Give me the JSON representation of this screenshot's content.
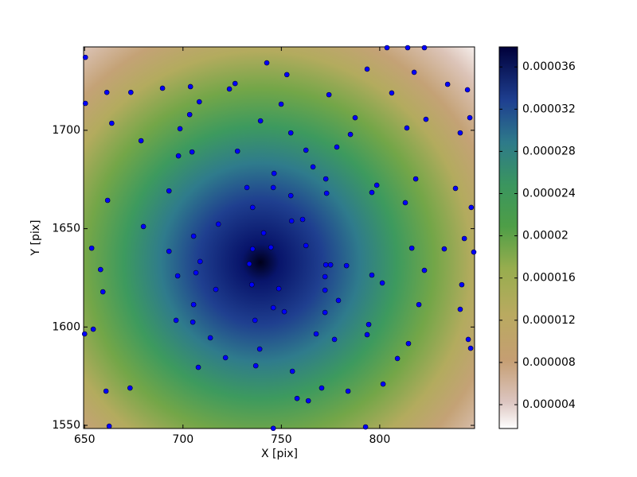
{
  "chart_data": {
    "type": "scatter",
    "x_label": "X [pix]",
    "y_label": "Y [pix]",
    "xlim": [
      649.5,
      848.2
    ],
    "ylim": [
      1548.4,
      1742.4
    ],
    "xticks": [
      650,
      700,
      750,
      800
    ],
    "yticks": [
      1550,
      1600,
      1650,
      1700
    ],
    "color": "#0000ff",
    "x": [
      650.4,
      661.3,
      673.5,
      650.4,
      663.8,
      689.6,
      703.8,
      726.5,
      723.6,
      708.3,
      703.4,
      698.5,
      704.6,
      678.7,
      697.7,
      727.7,
      739.4,
      742.6,
      752.8,
      749.9,
      754.8,
      762.5,
      766.1,
      772.6,
      773.0,
      778.2,
      774.2,
      787.5,
      785.1,
      793.6,
      803.7,
      814.2,
      822.7,
      806.1,
      817.5,
      813.8,
      823.5,
      818.3,
      834.5,
      844.6,
      840.9,
      845.8,
      838.5,
      846.5,
      843.0,
      847.8,
      832.8,
      822.7,
      816.3,
      813.0,
      798.5,
      796.0,
      746.3,
      732.5,
      735.4,
      692.9,
      718.0,
      705.4,
      679.9,
      661.7,
      653.6,
      658.1,
      659.3,
      692.9,
      697.3,
      706.6,
      708.7,
      705.4,
      696.5,
      705.0,
      713.9,
      707.8,
      721.6,
      736.6,
      739.0,
      737.0,
      745.9,
      751.5,
      748.7,
      735.4,
      733.7,
      735.0,
      741.0,
      744.7,
      755.2,
      762.5,
      760.8,
      772.6,
      775.0,
      772.2,
      772.2,
      779.0,
      783.1,
      796.0,
      801.3,
      819.9,
      814.6,
      809.0,
      801.7,
      794.4,
      793.6,
      777.0,
      767.7,
      770.5,
      763.7,
      758.0,
      755.6,
      745.9,
      792.8,
      783.9,
      662.5,
      660.9,
      673.1,
      650.0,
      654.4,
      841.7,
      840.9,
      845.0,
      846.2,
      716.7,
      772.2,
      754.8,
      745.9
    ],
    "y": [
      1737.1,
      1719.3,
      1719.3,
      1713.7,
      1703.6,
      1721.4,
      1722.2,
      1723.8,
      1721.0,
      1714.5,
      1708.0,
      1700.8,
      1689.0,
      1694.7,
      1687.0,
      1689.4,
      1704.8,
      1734.3,
      1728.3,
      1713.3,
      1698.7,
      1689.9,
      1681.4,
      1675.3,
      1668.0,
      1691.5,
      1718.1,
      1706.4,
      1697.9,
      1731.1,
      1742.0,
      1742.0,
      1742.0,
      1719.0,
      1729.5,
      1701.2,
      1705.6,
      1675.3,
      1723.4,
      1720.6,
      1698.7,
      1706.4,
      1670.5,
      1660.8,
      1645.0,
      1638.1,
      1639.7,
      1628.8,
      1640.1,
      1663.2,
      1672.1,
      1668.4,
      1678.1,
      1670.9,
      1660.8,
      1669.2,
      1652.3,
      1646.2,
      1651.1,
      1664.4,
      1640.1,
      1629.2,
      1617.9,
      1638.5,
      1626.0,
      1627.6,
      1633.3,
      1611.4,
      1603.4,
      1602.5,
      1594.5,
      1579.5,
      1584.4,
      1603.4,
      1588.8,
      1580.3,
      1609.8,
      1607.8,
      1619.5,
      1639.7,
      1632.1,
      1621.5,
      1647.8,
      1640.5,
      1653.9,
      1641.4,
      1654.7,
      1631.6,
      1631.6,
      1625.6,
      1618.7,
      1613.5,
      1631.2,
      1626.4,
      1622.4,
      1611.4,
      1591.6,
      1584.0,
      1571.0,
      1601.3,
      1596.1,
      1593.7,
      1596.5,
      1569.0,
      1562.5,
      1563.7,
      1577.5,
      1548.5,
      1549.2,
      1567.4,
      1549.6,
      1567.4,
      1569.0,
      1596.5,
      1598.9,
      1621.5,
      1609.0,
      1593.7,
      1589.2,
      1619.1,
      1607.4,
      1666.8,
      1670.9
    ],
    "colorbar": {
      "lim": [
        1.74e-06,
        3.79e-05
      ],
      "ticks": [
        4e-06,
        8e-06,
        1.2e-05,
        1.6e-05,
        2e-05,
        2.4e-05,
        2.8e-05,
        3.2e-05,
        3.6e-05
      ]
    }
  }
}
